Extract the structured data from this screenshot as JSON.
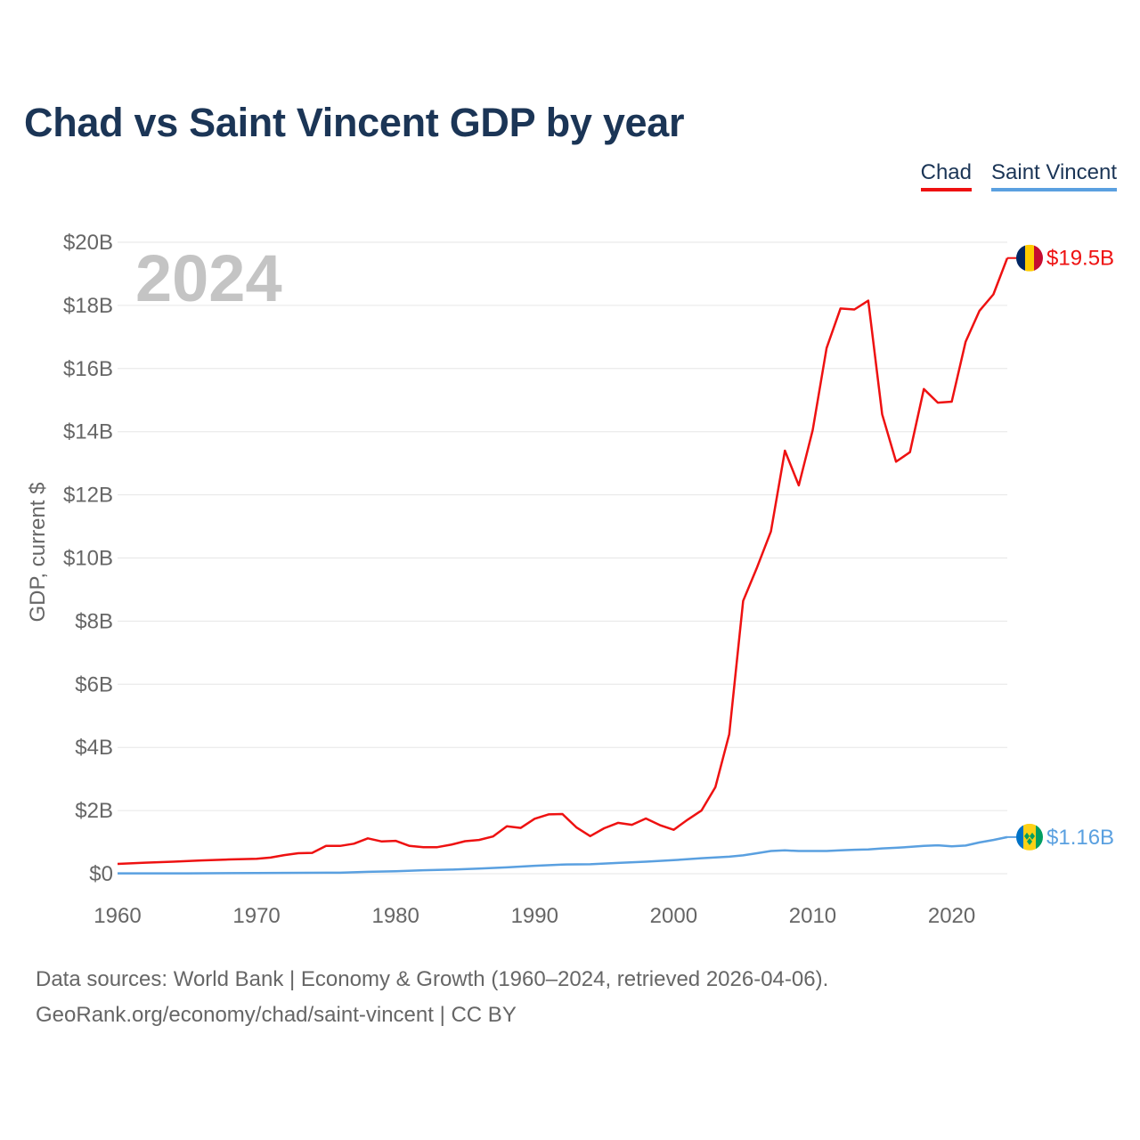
{
  "title": "Chad vs Saint Vincent GDP by year",
  "legend": [
    {
      "label": "Chad",
      "color": "#ee1111"
    },
    {
      "label": "Saint Vincent",
      "color": "#5aa0e0"
    }
  ],
  "year_watermark": "2024",
  "source": {
    "line1": "Data sources: World Bank | Economy & Growth (1960–2024, retrieved 2026-04-06).",
    "line2": "GeoRank.org/economy/chad/saint-vincent | CC BY"
  },
  "chart_data": {
    "type": "line",
    "title": "Chad vs Saint Vincent GDP by year",
    "xlabel": "",
    "ylabel": "GDP, current $",
    "xlim": [
      1960,
      2024
    ],
    "ylim": [
      0,
      20
    ],
    "unit": "billion USD",
    "x_ticks": [
      1960,
      1970,
      1980,
      1990,
      2000,
      2010,
      2020
    ],
    "y_ticks": [
      0,
      2,
      4,
      6,
      8,
      10,
      12,
      14,
      16,
      18,
      20
    ],
    "y_tick_labels": [
      "$0",
      "$2B",
      "$4B",
      "$6B",
      "$8B",
      "$10B",
      "$12B",
      "$14B",
      "$16B",
      "$18B",
      "$20B"
    ],
    "grid": true,
    "legend_position": "top-right",
    "series": [
      {
        "name": "Chad",
        "color": "#ee1111",
        "end_label": "$19.5B",
        "flag": "chad-flag",
        "points": [
          [
            1960,
            0.31
          ],
          [
            1962,
            0.35
          ],
          [
            1964,
            0.38
          ],
          [
            1966,
            0.42
          ],
          [
            1968,
            0.45
          ],
          [
            1970,
            0.47
          ],
          [
            1971,
            0.51
          ],
          [
            1972,
            0.59
          ],
          [
            1973,
            0.65
          ],
          [
            1974,
            0.66
          ],
          [
            1975,
            0.88
          ],
          [
            1976,
            0.88
          ],
          [
            1977,
            0.95
          ],
          [
            1978,
            1.12
          ],
          [
            1979,
            1.02
          ],
          [
            1980,
            1.04
          ],
          [
            1981,
            0.88
          ],
          [
            1982,
            0.84
          ],
          [
            1983,
            0.84
          ],
          [
            1984,
            0.92
          ],
          [
            1985,
            1.03
          ],
          [
            1986,
            1.07
          ],
          [
            1987,
            1.18
          ],
          [
            1988,
            1.5
          ],
          [
            1989,
            1.45
          ],
          [
            1990,
            1.74
          ],
          [
            1991,
            1.88
          ],
          [
            1992,
            1.89
          ],
          [
            1993,
            1.47
          ],
          [
            1994,
            1.19
          ],
          [
            1995,
            1.44
          ],
          [
            1996,
            1.61
          ],
          [
            1997,
            1.55
          ],
          [
            1998,
            1.75
          ],
          [
            1999,
            1.54
          ],
          [
            2000,
            1.39
          ],
          [
            2001,
            1.71
          ],
          [
            2002,
            2.0
          ],
          [
            2003,
            2.74
          ],
          [
            2004,
            4.42
          ],
          [
            2005,
            8.64
          ],
          [
            2006,
            9.7
          ],
          [
            2007,
            10.84
          ],
          [
            2008,
            13.4
          ],
          [
            2009,
            12.3
          ],
          [
            2010,
            14.05
          ],
          [
            2011,
            16.65
          ],
          [
            2012,
            17.9
          ],
          [
            2013,
            17.87
          ],
          [
            2014,
            18.15
          ],
          [
            2015,
            14.55
          ],
          [
            2016,
            13.05
          ],
          [
            2017,
            13.35
          ],
          [
            2018,
            15.35
          ],
          [
            2019,
            14.92
          ],
          [
            2020,
            14.95
          ],
          [
            2021,
            16.85
          ],
          [
            2022,
            17.83
          ],
          [
            2023,
            18.35
          ],
          [
            2024,
            19.5
          ]
        ]
      },
      {
        "name": "Saint Vincent",
        "color": "#5aa0e0",
        "end_label": "$1.16B",
        "flag": "saint-vincent-flag",
        "points": [
          [
            1960,
            0.01
          ],
          [
            1965,
            0.01
          ],
          [
            1970,
            0.02
          ],
          [
            1975,
            0.03
          ],
          [
            1976,
            0.03
          ],
          [
            1978,
            0.06
          ],
          [
            1980,
            0.08
          ],
          [
            1982,
            0.11
          ],
          [
            1984,
            0.13
          ],
          [
            1986,
            0.16
          ],
          [
            1988,
            0.2
          ],
          [
            1990,
            0.25
          ],
          [
            1992,
            0.29
          ],
          [
            1994,
            0.3
          ],
          [
            1996,
            0.34
          ],
          [
            1998,
            0.38
          ],
          [
            2000,
            0.43
          ],
          [
            2002,
            0.49
          ],
          [
            2004,
            0.54
          ],
          [
            2005,
            0.58
          ],
          [
            2006,
            0.65
          ],
          [
            2007,
            0.72
          ],
          [
            2008,
            0.74
          ],
          [
            2009,
            0.72
          ],
          [
            2010,
            0.72
          ],
          [
            2011,
            0.72
          ],
          [
            2012,
            0.74
          ],
          [
            2013,
            0.76
          ],
          [
            2014,
            0.77
          ],
          [
            2015,
            0.8
          ],
          [
            2016,
            0.82
          ],
          [
            2017,
            0.85
          ],
          [
            2018,
            0.88
          ],
          [
            2019,
            0.9
          ],
          [
            2020,
            0.87
          ],
          [
            2021,
            0.89
          ],
          [
            2022,
            0.99
          ],
          [
            2023,
            1.07
          ],
          [
            2024,
            1.16
          ]
        ]
      }
    ]
  }
}
